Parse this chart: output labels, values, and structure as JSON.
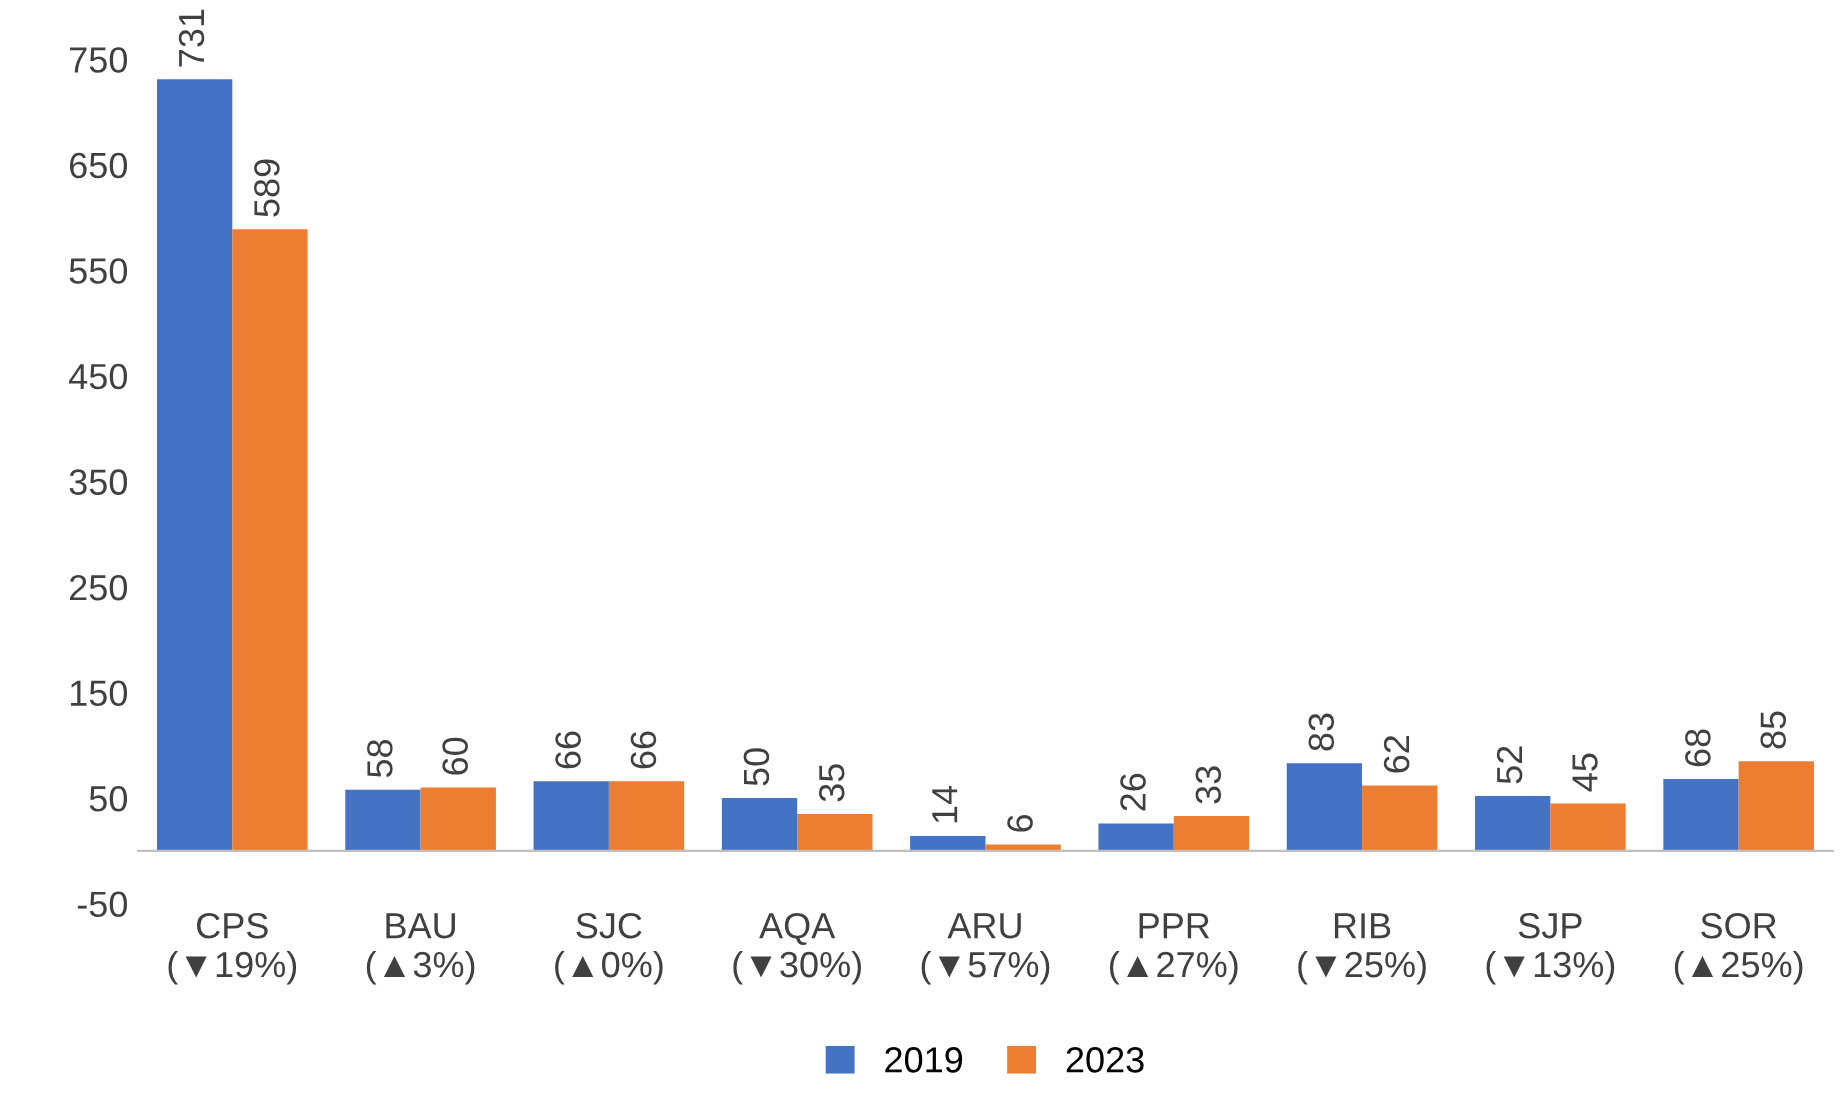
{
  "chart_data": {
    "type": "bar",
    "categories": [
      "CPS\n(▼19%)",
      "BAU\n(▲3%)",
      "SJC\n(▲0%)",
      "AQA\n(▼30%)",
      "ARU\n(▼57%)",
      "PPR\n(▲27%)",
      "RIB\n(▼25%)",
      "SJP\n(▼13%)",
      "SOR\n(▲25%)"
    ],
    "series": [
      {
        "name": "2019",
        "color": "#4472c4",
        "values": [
          731,
          58,
          66,
          50,
          14,
          26,
          83,
          52,
          68
        ]
      },
      {
        "name": "2023",
        "color": "#ed7d31",
        "values": [
          589,
          60,
          66,
          35,
          6,
          33,
          62,
          45,
          85
        ]
      }
    ],
    "ylim": [
      -50,
      750
    ],
    "yticks": [
      -50,
      50,
      150,
      250,
      350,
      450,
      550,
      650,
      750
    ],
    "grid": false,
    "legend": "bottom",
    "data_labels": true
  }
}
